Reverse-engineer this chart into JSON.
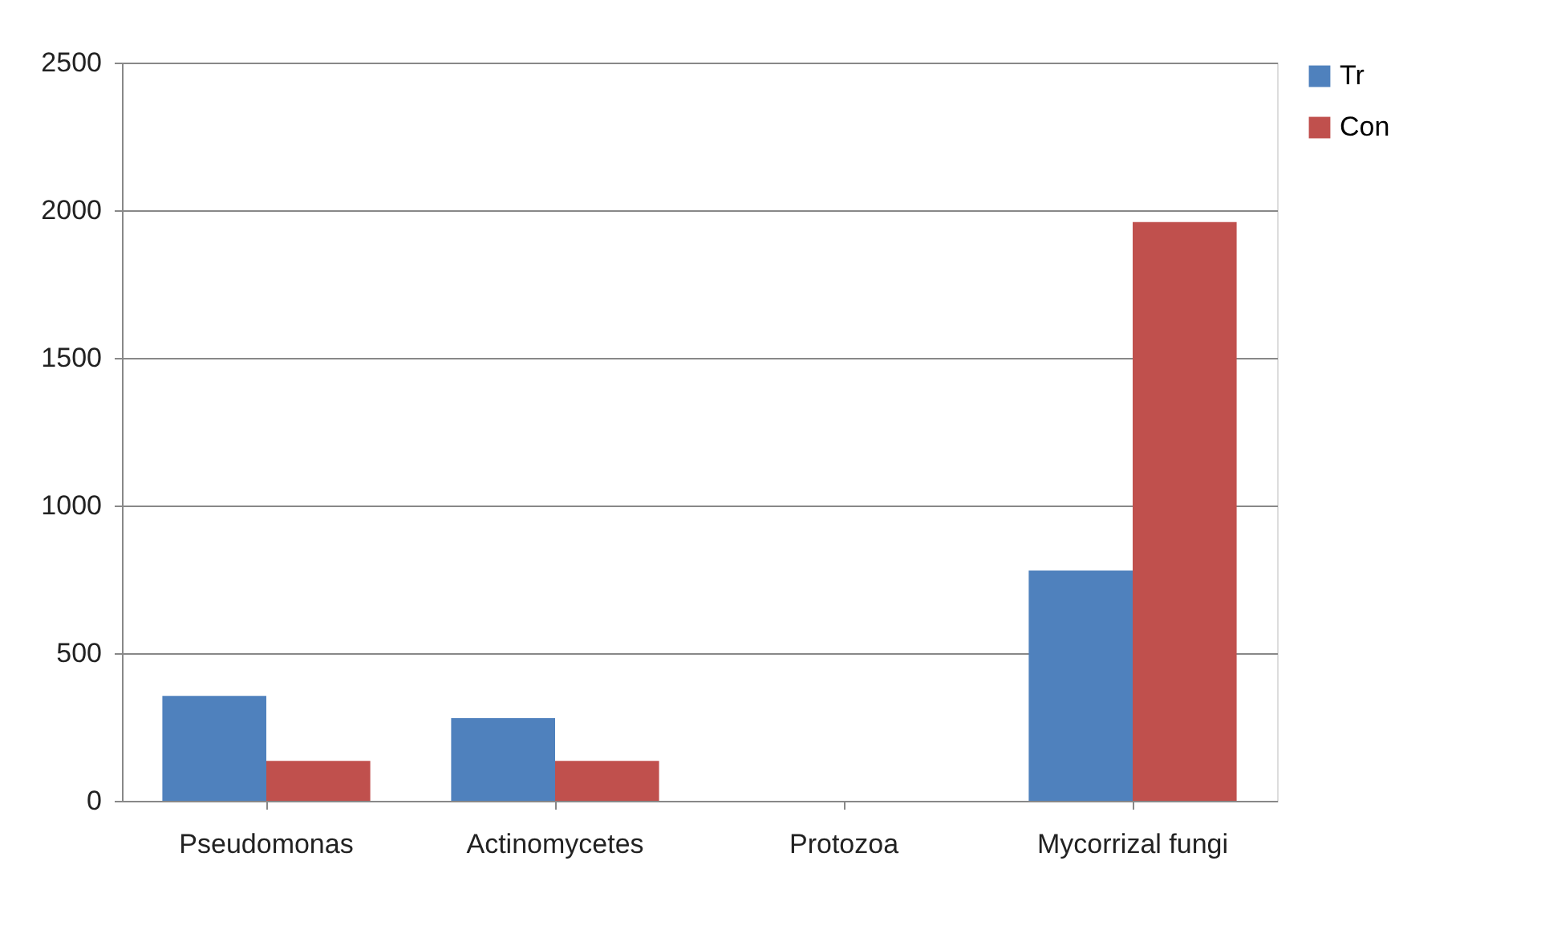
{
  "chart_data": {
    "type": "bar",
    "categories": [
      "Pseudomonas",
      "Actinomycetes",
      "Protozoa",
      "Mycorrizal fungi"
    ],
    "series": [
      {
        "name": "Tr",
        "color": "#4f81bd",
        "values": [
          355,
          280,
          0,
          780
        ]
      },
      {
        "name": "Con",
        "color": "#c0504d",
        "values": [
          135,
          135,
          0,
          1960
        ]
      }
    ],
    "ylim": [
      0,
      2500
    ],
    "yticks": [
      0,
      500,
      1000,
      1500,
      2000,
      2500
    ],
    "grid": "y",
    "legend": "right"
  }
}
